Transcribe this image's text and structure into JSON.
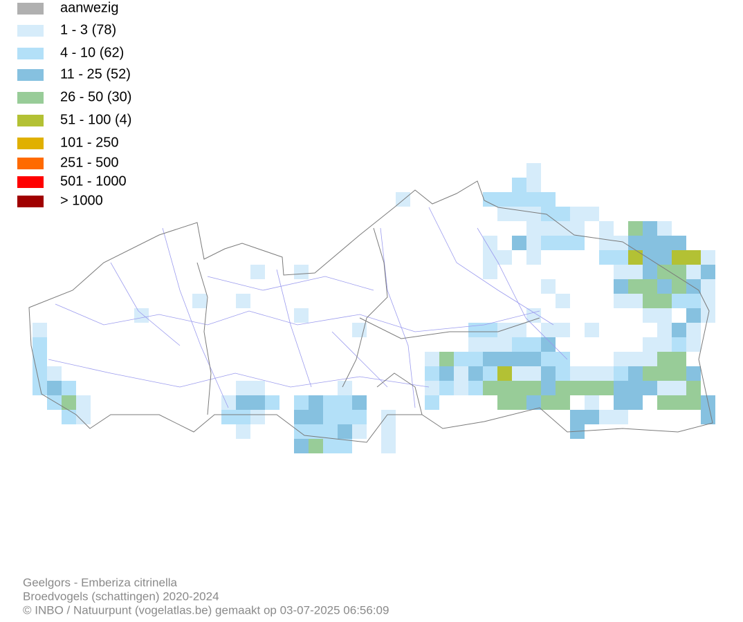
{
  "legend": {
    "items": [
      {
        "label": "aanwezig",
        "color": "#b0b0b0"
      },
      {
        "label": "1 - 3 (78)",
        "color": "#d6ecfa"
      },
      {
        "label": "4 - 10 (62)",
        "color": "#b3e0f8"
      },
      {
        "label": "11 - 25 (52)",
        "color": "#86c1e0"
      },
      {
        "label": "26 - 50 (30)",
        "color": "#98cc98"
      },
      {
        "label": "51 - 100 (4)",
        "color": "#b3c134"
      },
      {
        "label": "101 - 250",
        "color": "#e0b000"
      },
      {
        "label": "251 - 500",
        "color": "#ff6a00"
      },
      {
        "label": "501 - 1000",
        "color": "#ff0000"
      },
      {
        "label": "> 1000",
        "color": "#a00000"
      }
    ]
  },
  "footer": {
    "lines": [
      "Geelgors - Emberiza citrinella",
      "Broedvogels (schattingen) 2020-2024",
      "© INBO / Natuurpunt (vogelatlas.be) gemaakt op 03-07-2025 06:56:09"
    ]
  }
}
